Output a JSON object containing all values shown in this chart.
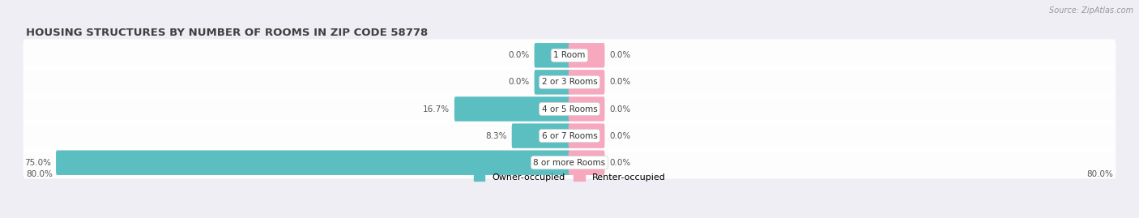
{
  "title": "HOUSING STRUCTURES BY NUMBER OF ROOMS IN ZIP CODE 58778",
  "source": "Source: ZipAtlas.com",
  "categories": [
    "1 Room",
    "2 or 3 Rooms",
    "4 or 5 Rooms",
    "6 or 7 Rooms",
    "8 or more Rooms"
  ],
  "owner_values": [
    0.0,
    0.0,
    16.7,
    8.3,
    75.0
  ],
  "renter_values": [
    0.0,
    0.0,
    0.0,
    0.0,
    0.0
  ],
  "owner_color": "#5bbfc2",
  "renter_color": "#f7a8be",
  "xlim_left": -80.0,
  "xlim_right": 80.0,
  "background_color": "#eeeef4",
  "label_color": "#555555",
  "title_color": "#404040",
  "source_color": "#999999",
  "legend_owner": "Owner-occupied",
  "legend_renter": "Renter-occupied",
  "min_bar_width": 5.0,
  "bar_height": 0.62
}
